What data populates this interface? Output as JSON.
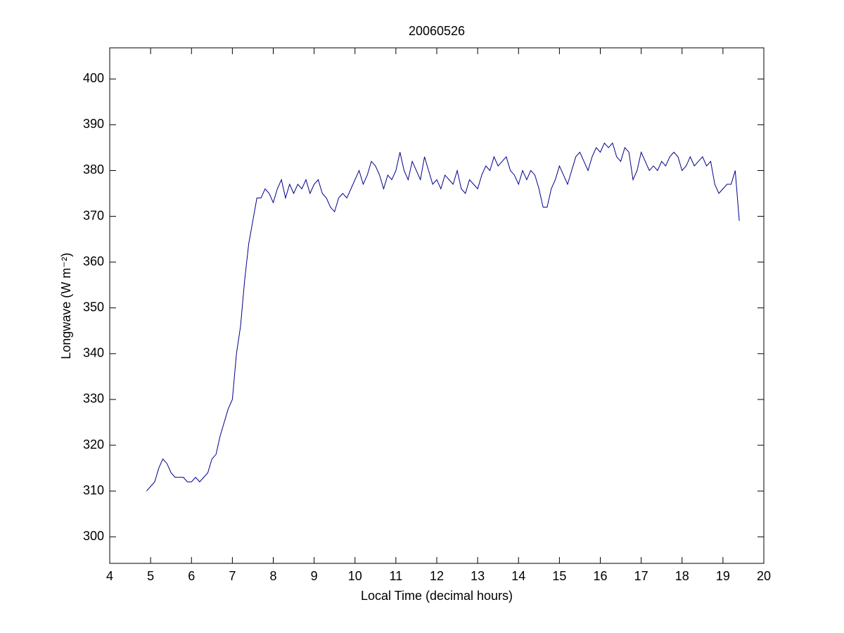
{
  "chart_data": {
    "type": "line",
    "title": "20060526",
    "x_label": "Local Time (decimal hours)",
    "y_label": "Longwave (W m⁻²)",
    "x": [
      4.9,
      5.0,
      5.1,
      5.2,
      5.3,
      5.4,
      5.5,
      5.6,
      5.7,
      5.8,
      5.9,
      6.0,
      6.1,
      6.2,
      6.3,
      6.4,
      6.5,
      6.6,
      6.7,
      6.8,
      6.9,
      7.0,
      7.1,
      7.2,
      7.3,
      7.4,
      7.5,
      7.6,
      7.7,
      7.8,
      7.9,
      8.0,
      8.1,
      8.2,
      8.3,
      8.4,
      8.5,
      8.6,
      8.7,
      8.8,
      8.9,
      9.0,
      9.1,
      9.2,
      9.3,
      9.4,
      9.5,
      9.6,
      9.7,
      9.8,
      9.9,
      10.0,
      10.1,
      10.2,
      10.3,
      10.4,
      10.5,
      10.6,
      10.7,
      10.8,
      10.9,
      11.0,
      11.1,
      11.2,
      11.3,
      11.4,
      11.5,
      11.6,
      11.7,
      11.8,
      11.9,
      12.0,
      12.1,
      12.2,
      12.3,
      12.4,
      12.5,
      12.6,
      12.7,
      12.8,
      12.9,
      13.0,
      13.1,
      13.2,
      13.3,
      13.4,
      13.5,
      13.6,
      13.7,
      13.8,
      13.9,
      14.0,
      14.1,
      14.2,
      14.3,
      14.4,
      14.5,
      14.6,
      14.7,
      14.8,
      14.9,
      15.0,
      15.1,
      15.2,
      15.3,
      15.4,
      15.5,
      15.6,
      15.7,
      15.8,
      15.9,
      16.0,
      16.1,
      16.2,
      16.3,
      16.4,
      16.5,
      16.6,
      16.7,
      16.8,
      16.9,
      17.0,
      17.1,
      17.2,
      17.3,
      17.4,
      17.5,
      17.6,
      17.7,
      17.8,
      17.9,
      18.0,
      18.1,
      18.2,
      18.3,
      18.4,
      18.5,
      18.6,
      18.7,
      18.8,
      18.9,
      19.0,
      19.1,
      19.2,
      19.3,
      19.4
    ],
    "values": [
      310,
      311,
      312,
      315,
      317,
      316,
      314,
      313,
      313,
      313,
      312,
      312,
      313,
      312,
      313,
      314,
      317,
      318,
      322,
      325,
      328,
      330,
      340,
      346,
      356,
      364,
      369,
      374,
      374,
      376,
      375,
      373,
      376,
      378,
      374,
      377,
      375,
      377,
      376,
      378,
      375,
      377,
      378,
      375,
      374,
      372,
      371,
      374,
      375,
      374,
      376,
      378,
      380,
      377,
      379,
      382,
      381,
      379,
      376,
      379,
      378,
      380,
      384,
      380,
      378,
      382,
      380,
      378,
      383,
      380,
      377,
      378,
      376,
      379,
      378,
      377,
      380,
      376,
      375,
      378,
      377,
      376,
      379,
      381,
      380,
      383,
      381,
      382,
      383,
      380,
      379,
      377,
      380,
      378,
      380,
      379,
      376,
      372,
      372,
      376,
      378,
      381,
      379,
      377,
      380,
      383,
      384,
      382,
      380,
      383,
      385,
      384,
      386,
      385,
      386,
      383,
      382,
      385,
      384,
      378,
      380,
      384,
      382,
      380,
      381,
      380,
      382,
      381,
      383,
      384,
      383,
      380,
      381,
      383,
      381,
      382,
      383,
      381,
      382,
      377,
      375,
      376,
      377,
      377,
      380,
      369
    ],
    "color": "#00008b",
    "xlim": [
      4,
      20
    ],
    "xticks": [
      4,
      5,
      6,
      7,
      8,
      9,
      10,
      11,
      12,
      13,
      14,
      15,
      16,
      17,
      18,
      19,
      20
    ],
    "ylim": [
      294.2,
      406.8
    ],
    "yticks": [
      300,
      310,
      320,
      330,
      340,
      350,
      360,
      370,
      380,
      390,
      400
    ]
  }
}
